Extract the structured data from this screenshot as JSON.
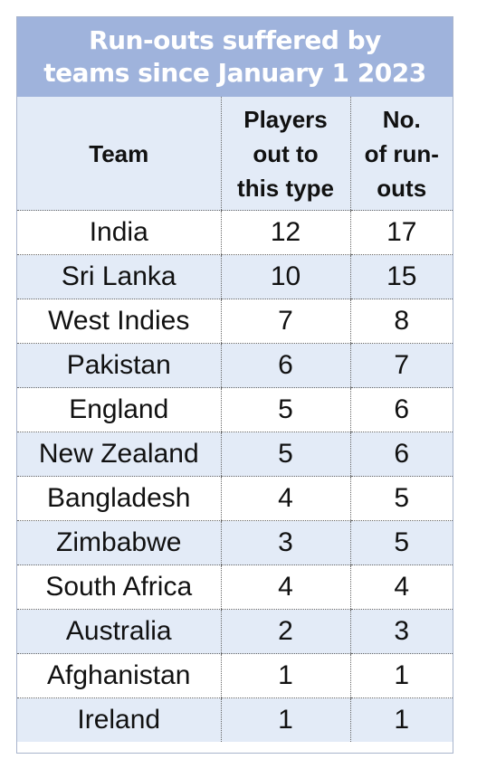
{
  "chart_data": {
    "type": "table",
    "title_lines": [
      "Run-outs suffered by",
      "teams since January 1 2023"
    ],
    "columns": [
      {
        "lines": [
          "Team"
        ]
      },
      {
        "lines": [
          "Players",
          "out to",
          "this type"
        ]
      },
      {
        "lines": [
          "No.",
          "of run-",
          "outs"
        ]
      }
    ],
    "rows": [
      [
        "India",
        "12",
        "17"
      ],
      [
        "Sri Lanka",
        "10",
        "15"
      ],
      [
        "West Indies",
        "7",
        "8"
      ],
      [
        "Pakistan",
        "6",
        "7"
      ],
      [
        "England",
        "5",
        "6"
      ],
      [
        "New Zealand",
        "5",
        "6"
      ],
      [
        "Bangladesh",
        "4",
        "5"
      ],
      [
        "Zimbabwe",
        "3",
        "5"
      ],
      [
        "South Africa",
        "4",
        "4"
      ],
      [
        "Australia",
        "2",
        "3"
      ],
      [
        "Afghanistan",
        "1",
        "1"
      ],
      [
        "Ireland",
        "1",
        "1"
      ]
    ]
  },
  "colors": {
    "title_band": "#9fb3dc",
    "stripe": "#e3ebf7",
    "text": "#111111"
  }
}
